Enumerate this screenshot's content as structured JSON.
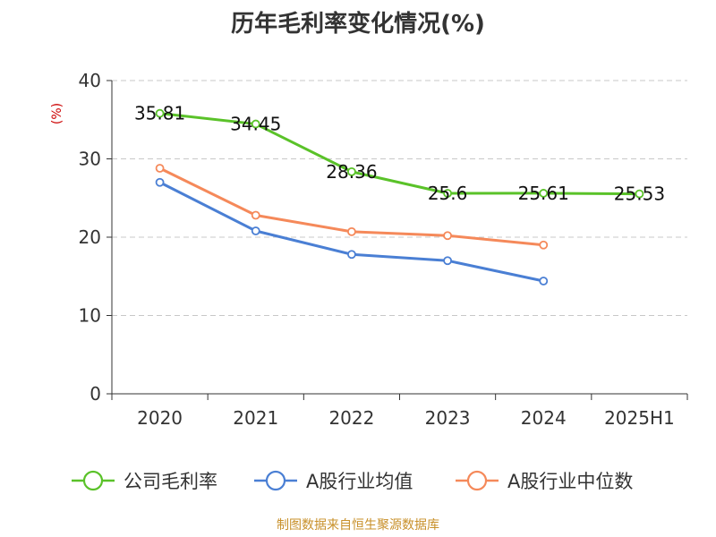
{
  "chart_data": {
    "type": "line",
    "title": "历年毛利率变化情况(%)",
    "ylabel": "(%)",
    "xlabel": "",
    "categories": [
      "2020",
      "2021",
      "2022",
      "2023",
      "2024",
      "2025H1"
    ],
    "ylim": [
      0,
      40
    ],
    "yticks": [
      0,
      10,
      20,
      30,
      40
    ],
    "grid": true,
    "legend_position": "bottom",
    "series": [
      {
        "name": "公司毛利率",
        "color": "#5ac229",
        "values": [
          35.81,
          34.45,
          28.36,
          25.6,
          25.61,
          25.53
        ],
        "labels": [
          "35.81",
          "34.45",
          "28.36",
          "25.6",
          "25.61",
          "25.53"
        ],
        "show_labels": true
      },
      {
        "name": "A股行业均值",
        "color": "#4a7fd4",
        "values": [
          27.0,
          20.8,
          17.8,
          17.0,
          14.4,
          null
        ],
        "show_labels": false
      },
      {
        "name": "A股行业中位数",
        "color": "#f5895a",
        "values": [
          28.8,
          22.8,
          20.7,
          20.2,
          19.0,
          null
        ],
        "show_labels": false
      }
    ]
  },
  "source": "制图数据来自恒生聚源数据库"
}
